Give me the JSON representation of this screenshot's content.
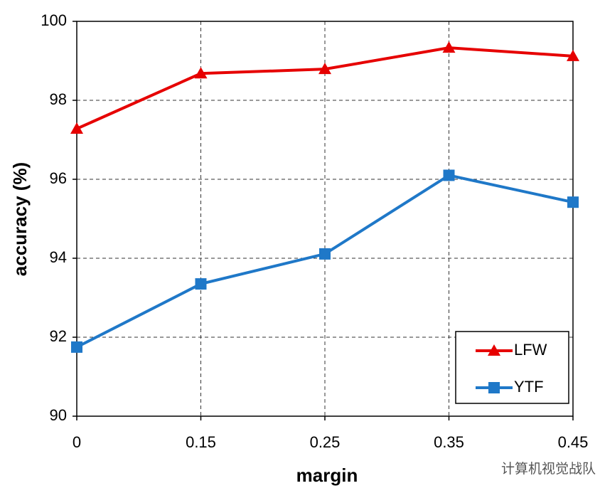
{
  "chart_data": {
    "type": "line",
    "xlabel": "margin",
    "ylabel": "accuracy (%)",
    "categories": [
      "0",
      "0.15",
      "0.25",
      "0.35",
      "0.45"
    ],
    "series": [
      {
        "name": "LFW",
        "color": "#e60000",
        "marker": "triangle",
        "values": [
          97.28,
          98.68,
          98.79,
          99.33,
          99.12
        ]
      },
      {
        "name": "YTF",
        "color": "#1f78c8",
        "marker": "square",
        "values": [
          91.75,
          93.35,
          94.11,
          96.1,
          95.42
        ]
      }
    ],
    "ylim": [
      90,
      100
    ],
    "yticks": [
      90,
      92,
      94,
      96,
      98,
      100
    ],
    "grid": true,
    "legend": "lower right",
    "watermark": "计算机视觉战队"
  }
}
